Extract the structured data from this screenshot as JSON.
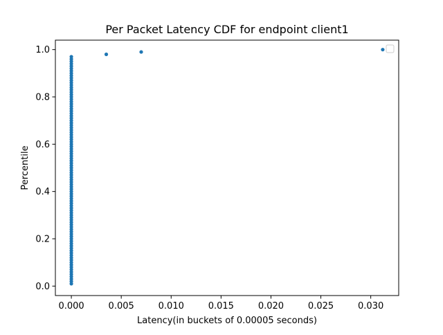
{
  "chart_data": {
    "type": "scatter",
    "title": "Per Packet Latency CDF for endpoint client1",
    "xlabel": "Latency(in buckets of 0.00005 seconds)",
    "ylabel": "Percentile",
    "xlim": [
      -0.0016,
      0.0328
    ],
    "ylim": [
      -0.04,
      1.04
    ],
    "xticks": [
      0.0,
      0.005,
      0.01,
      0.015,
      0.02,
      0.025,
      0.03
    ],
    "xtick_labels": [
      "0.000",
      "0.005",
      "0.010",
      "0.015",
      "0.020",
      "0.025",
      "0.030"
    ],
    "yticks": [
      0.0,
      0.2,
      0.4,
      0.6,
      0.8,
      1.0
    ],
    "ytick_labels": [
      "0.0",
      "0.2",
      "0.4",
      "0.6",
      "0.8",
      "1.0"
    ],
    "grid": false,
    "legend": "top-right, empty",
    "marker_color": "#1f77b4",
    "series": [
      {
        "x": [
          0,
          0,
          0,
          0,
          0,
          0,
          0,
          0,
          0,
          0,
          0,
          0,
          0,
          0,
          0,
          0,
          0,
          0,
          0,
          0,
          0,
          0,
          0,
          0,
          0,
          0,
          0,
          0,
          0,
          0,
          0,
          0,
          0,
          0,
          0,
          0,
          0,
          0,
          0,
          0,
          0,
          0,
          0,
          0,
          0,
          0,
          0,
          0,
          0,
          0,
          0,
          0,
          0,
          0,
          0,
          0,
          0,
          0,
          0,
          0,
          0,
          0,
          0,
          0,
          0,
          0,
          0,
          0,
          0,
          0,
          0,
          0,
          0,
          0,
          0,
          0,
          0,
          0,
          0,
          0,
          0,
          0,
          0,
          0,
          0,
          0,
          0,
          0,
          0,
          0,
          0,
          0,
          0,
          0,
          0,
          0,
          0,
          0.0035,
          0.007,
          0.0312
        ],
        "y": [
          0.01,
          0.02,
          0.03,
          0.04,
          0.05,
          0.06,
          0.07,
          0.08,
          0.09,
          0.1,
          0.11,
          0.12,
          0.13,
          0.14,
          0.15,
          0.16,
          0.17,
          0.18,
          0.19,
          0.2,
          0.21,
          0.22,
          0.23,
          0.24,
          0.25,
          0.26,
          0.27,
          0.28,
          0.29,
          0.3,
          0.31,
          0.32,
          0.33,
          0.34,
          0.35,
          0.36,
          0.37,
          0.38,
          0.39,
          0.4,
          0.41,
          0.42,
          0.43,
          0.44,
          0.45,
          0.46,
          0.47,
          0.48,
          0.49,
          0.5,
          0.51,
          0.52,
          0.53,
          0.54,
          0.55,
          0.56,
          0.57,
          0.58,
          0.59,
          0.6,
          0.61,
          0.62,
          0.63,
          0.64,
          0.65,
          0.66,
          0.67,
          0.68,
          0.69,
          0.7,
          0.71,
          0.72,
          0.73,
          0.74,
          0.75,
          0.76,
          0.77,
          0.78,
          0.79,
          0.8,
          0.81,
          0.82,
          0.83,
          0.84,
          0.85,
          0.86,
          0.87,
          0.88,
          0.89,
          0.9,
          0.91,
          0.92,
          0.93,
          0.94,
          0.95,
          0.96,
          0.97,
          0.98,
          0.99,
          1.0
        ]
      }
    ]
  }
}
